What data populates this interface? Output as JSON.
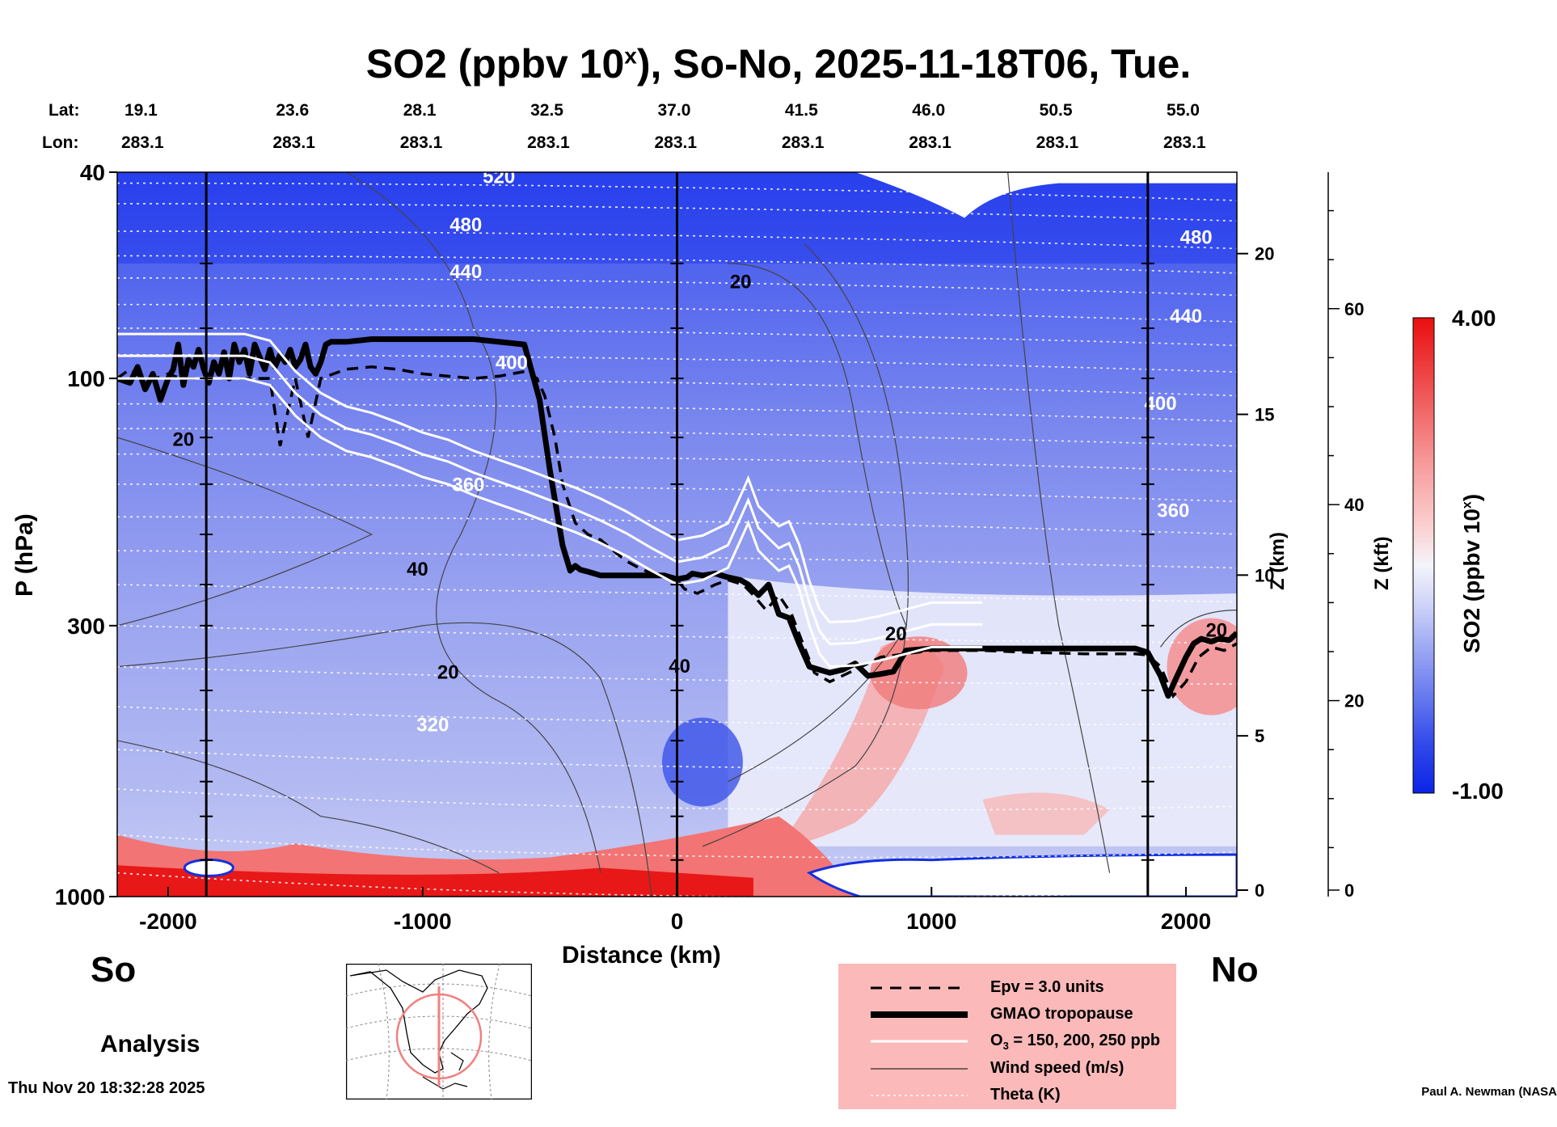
{
  "chart_data": {
    "type": "heatmap",
    "title_main": "SO2 (ppbv 10",
    "title_sup": "x",
    "title_rest": "), So-No, 2025-11-18T06, Tue.",
    "header": {
      "lat_label": "Lat:",
      "lon_label": "Lon:",
      "lats": [
        "19.1",
        "23.6",
        "28.1",
        "32.5",
        "37.0",
        "41.5",
        "46.0",
        "50.5",
        "55.0"
      ],
      "lons": [
        "283.1",
        "283.1",
        "283.1",
        "283.1",
        "283.1",
        "283.1",
        "283.1",
        "283.1",
        "283.1"
      ]
    },
    "x_axis": {
      "label": "Distance (km)",
      "range": [
        -2200,
        2200
      ],
      "ticks": [
        -2000,
        -1000,
        0,
        1000,
        2000
      ],
      "tick_labels": [
        "-2000",
        "-1000",
        "0",
        "1000",
        "2000"
      ]
    },
    "y_axis": {
      "label": "P (hPa)",
      "scale": "log",
      "range": [
        1000,
        40
      ],
      "ticks": [
        40,
        100,
        300,
        1000
      ],
      "tick_labels": [
        "40",
        "100",
        "300",
        "1000"
      ]
    },
    "z_km_axis": {
      "label": "Z (km)",
      "ticks": [
        0,
        5,
        10,
        15,
        20
      ],
      "tick_labels": [
        "0",
        "5",
        "10",
        "15",
        "20"
      ]
    },
    "z_kft_axis": {
      "label": "Z (kft)",
      "ticks": [
        0,
        20,
        40,
        60
      ],
      "tick_labels": [
        "0",
        "20",
        "40",
        "60"
      ]
    },
    "colorbar": {
      "label_main": "SO2 (ppbv 10",
      "label_sup": "x",
      "label_rest": ")",
      "max_label": "4.00",
      "min_label": "-1.00",
      "range": [
        -1.0,
        4.0
      ],
      "low_color": "#0b24e6",
      "mid_color": "#f4f4fb",
      "high_color": "#ea0e0e"
    },
    "vertical_lines_km": [
      -1850,
      0,
      1850
    ],
    "theta_labels": [
      {
        "text": "520",
        "x": -700,
        "p": 42
      },
      {
        "text": "480",
        "x": -830,
        "p": 52
      },
      {
        "text": "480",
        "x": 2040,
        "p": 55
      },
      {
        "text": "440",
        "x": -830,
        "p": 64
      },
      {
        "text": "440",
        "x": 2000,
        "p": 78
      },
      {
        "text": "400",
        "x": -650,
        "p": 96
      },
      {
        "text": "400",
        "x": 1900,
        "p": 115
      },
      {
        "text": "360",
        "x": -820,
        "p": 165
      },
      {
        "text": "360",
        "x": 1950,
        "p": 185
      },
      {
        "text": "320",
        "x": -960,
        "p": 480
      }
    ],
    "wind_labels": [
      {
        "text": "20",
        "x": 250,
        "p": 67
      },
      {
        "text": "20",
        "x": -1940,
        "p": 135
      },
      {
        "text": "40",
        "x": -1020,
        "p": 240
      },
      {
        "text": "20",
        "x": -900,
        "p": 380
      },
      {
        "text": "40",
        "x": 10,
        "p": 370
      },
      {
        "text": "20",
        "x": 860,
        "p": 320
      },
      {
        "text": "20",
        "x": 2120,
        "p": 315
      }
    ],
    "series": [
      {
        "name": "GMAO tropopause",
        "style": "thick-black",
        "x": [
          -2200,
          -2150,
          -2120,
          -2090,
          -2060,
          -2030,
          -2000,
          -1980,
          -1960,
          -1940,
          -1920,
          -1900,
          -1880,
          -1860,
          -1840,
          -1820,
          -1800,
          -1780,
          -1760,
          -1740,
          -1720,
          -1700,
          -1680,
          -1660,
          -1640,
          -1620,
          -1600,
          -1580,
          -1560,
          -1540,
          -1520,
          -1500,
          -1480,
          -1460,
          -1440,
          -1420,
          -1400,
          -1380,
          -1360,
          -1300,
          -1200,
          -1000,
          -800,
          -600,
          -540,
          -500,
          -450,
          -420,
          -400,
          -380,
          -350,
          -300,
          -250,
          -200,
          -100,
          -50,
          0,
          40,
          60,
          100,
          150,
          200,
          250,
          280,
          320,
          360,
          400,
          440,
          480,
          520,
          560,
          600,
          650,
          700,
          750,
          800,
          850,
          900,
          1000,
          1200,
          1400,
          1600,
          1800,
          1850,
          1900,
          1930,
          1960,
          2000,
          2030,
          2060,
          2100,
          2130,
          2170,
          2200
        ],
        "p": [
          100,
          102,
          95,
          105,
          98,
          110,
          100,
          96,
          86,
          103,
          92,
          95,
          88,
          96,
          102,
          93,
          98,
          89,
          100,
          86,
          93,
          88,
          98,
          86,
          91,
          96,
          88,
          95,
          90,
          93,
          88,
          95,
          92,
          86,
          95,
          98,
          93,
          86,
          85,
          85,
          84,
          84,
          84,
          86,
          110,
          150,
          210,
          235,
          230,
          234,
          236,
          240,
          240,
          240,
          240,
          240,
          244,
          242,
          238,
          240,
          238,
          242,
          245,
          250,
          262,
          250,
          285,
          290,
          325,
          360,
          365,
          370,
          365,
          355,
          375,
          372,
          368,
          335,
          332,
          332,
          332,
          332,
          332,
          338,
          375,
          410,
          380,
          345,
          325,
          318,
          322,
          318,
          320,
          310
        ]
      },
      {
        "name": "Epv = 3.0 units",
        "style": "dashed-black",
        "x": [
          -2200,
          -2150,
          -2100,
          -2050,
          -2000,
          -1950,
          -1900,
          -1800,
          -1700,
          -1640,
          -1600,
          -1560,
          -1500,
          -1450,
          -1400,
          -1300,
          -1200,
          -1100,
          -1000,
          -900,
          -800,
          -700,
          -600,
          -550,
          -520,
          -480,
          -450,
          -400,
          -350,
          -300,
          -250,
          -200,
          -150,
          -100,
          -50,
          0,
          30,
          80,
          150,
          200,
          260,
          300,
          350,
          400,
          450,
          500,
          540,
          600,
          700,
          800,
          900,
          1000,
          1200,
          1400,
          1600,
          1800,
          1850,
          1900,
          1950,
          2000,
          2050,
          2100,
          2150,
          2200
        ],
        "p": [
          100,
          96,
          100,
          100,
          98,
          100,
          100,
          100,
          100,
          100,
          100,
          135,
          100,
          130,
          100,
          96,
          95,
          96,
          98,
          99,
          100,
          99,
          97,
          100,
          108,
          130,
          160,
          190,
          200,
          205,
          215,
          225,
          232,
          238,
          240,
          245,
          255,
          260,
          250,
          245,
          250,
          262,
          280,
          262,
          285,
          330,
          370,
          385,
          365,
          345,
          340,
          335,
          335,
          338,
          340,
          340,
          342,
          360,
          410,
          385,
          345,
          330,
          335,
          325
        ]
      },
      {
        "name": "O3 = 150, 200, 250 ppb",
        "style": "white",
        "x": [
          -2200,
          -2100,
          -2000,
          -1900,
          -1800,
          -1700,
          -1600,
          -1500,
          -1400,
          -1300,
          -1200,
          -1100,
          -1000,
          -900,
          -800,
          -700,
          -600,
          -500,
          -400,
          -300,
          -200,
          -100,
          0,
          100,
          200,
          250,
          280,
          320,
          360,
          400,
          440,
          480,
          520,
          560,
          600,
          700,
          800,
          900,
          1000,
          1100,
          1200
        ],
        "p": [
          100,
          100,
          100,
          100,
          100,
          100,
          103,
          118,
          130,
          138,
          142,
          148,
          155,
          160,
          168,
          175,
          182,
          190,
          198,
          208,
          220,
          235,
          250,
          245,
          232,
          205,
          190,
          215,
          225,
          235,
          230,
          255,
          300,
          340,
          360,
          358,
          350,
          340,
          330,
          330,
          330
        ]
      }
    ]
  },
  "bottom": {
    "so_label": "So",
    "no_label": "No",
    "analysis_label": "Analysis",
    "timestamp": "Thu Nov 20 18:32:28 2025",
    "credit": "Paul A. Newman (NASA"
  },
  "legend": {
    "background": "#fbb9b9",
    "items": [
      {
        "label": "Epv = 3.0 units",
        "style": "dashed"
      },
      {
        "label": "GMAO tropopause",
        "style": "thick"
      },
      {
        "label_main": "O",
        "label_sub": "3",
        "label_rest": " = 150, 200, 250 ppb",
        "style": "white"
      },
      {
        "label": "Wind speed (m/s)",
        "style": "thin"
      },
      {
        "label": "Theta (K)",
        "style": "dotted"
      }
    ]
  }
}
